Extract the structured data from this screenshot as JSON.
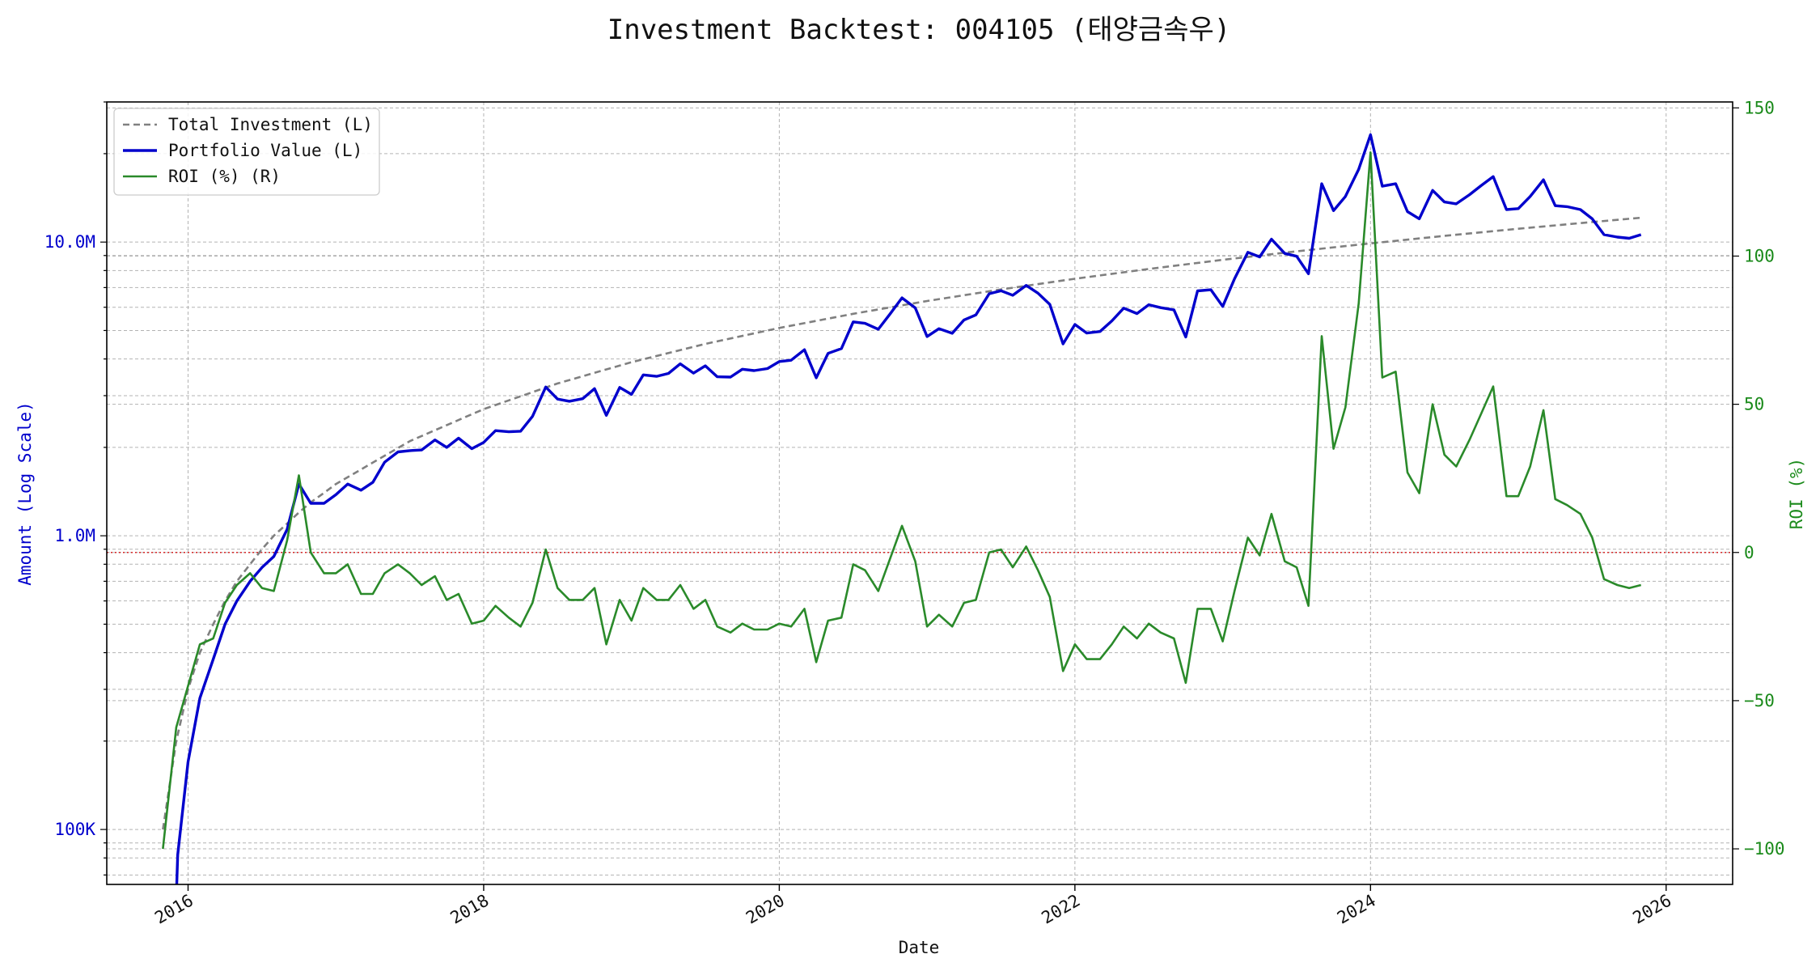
{
  "chart_data": {
    "type": "line",
    "title": "Investment Backtest: 004105 (태양금속우)",
    "xlabel": "Date",
    "ylabel_left": "Amount (Log Scale)",
    "ylabel_right": "ROI (%)",
    "left_scale": "log",
    "xlim": [
      2015.45,
      2026.45
    ],
    "ylim_left": [
      65000,
      30000000
    ],
    "ylim_right": [
      -112,
      152
    ],
    "x_ticks": [
      2016,
      2018,
      2020,
      2022,
      2024,
      2026
    ],
    "x_tick_labels": [
      "2016",
      "2018",
      "2020",
      "2022",
      "2024",
      "2026"
    ],
    "y_left_ticks": [
      100000,
      1000000,
      10000000
    ],
    "y_left_tick_labels": [
      "100K",
      "1.0M",
      "10.0M"
    ],
    "y_right_ticks": [
      -100,
      -50,
      0,
      50,
      100,
      150
    ],
    "y_right_tick_labels": [
      "−100",
      "−50",
      "0",
      "50",
      "100",
      "150"
    ],
    "grid": true,
    "legend_position": "upper-left",
    "reference_line": {
      "axis": "right",
      "value": 0,
      "color": "#d62728"
    },
    "colors": {
      "total": "#808080",
      "portfolio": "#0000cc",
      "roi": "#2a8a2a",
      "left_axis": "#0000cc",
      "right_axis": "#1a8a1a"
    },
    "series": [
      {
        "name": "Total Investment (L)",
        "axis": "left",
        "style": "dashed",
        "x": [
          2015.83,
          2015.92,
          2016.0,
          2016.08,
          2016.17,
          2016.25,
          2016.33,
          2016.42,
          2016.5,
          2016.58,
          2016.67,
          2016.75,
          2016.83,
          2016.92,
          2017.0,
          2017.5,
          2018.0,
          2018.5,
          2019.0,
          2019.5,
          2020.0,
          2020.5,
          2021.0,
          2021.5,
          2022.0,
          2022.5,
          2023.0,
          2023.5,
          2024.0,
          2024.5,
          2025.0,
          2025.5,
          2025.83
        ],
        "y": [
          100000,
          200000,
          300000,
          400000,
          500000,
          600000,
          700000,
          800000,
          900000,
          1000000,
          1100000,
          1200000,
          1300000,
          1400000,
          1500000,
          2100000,
          2700000,
          3300000,
          3900000,
          4500000,
          5100000,
          5700000,
          6300000,
          6900000,
          7500000,
          8100000,
          8700000,
          9300000,
          9900000,
          10500000,
          11100000,
          11700000,
          12100000
        ]
      },
      {
        "name": "Portfolio Value (L)",
        "axis": "left",
        "style": "solid",
        "x": [
          2015.92,
          2015.93,
          2016.0,
          2016.08,
          2016.17,
          2016.25,
          2016.33,
          2016.42,
          2016.5,
          2016.58,
          2016.67,
          2016.75,
          2016.83,
          2016.92,
          2017.0,
          2017.08,
          2017.17,
          2017.25,
          2017.33,
          2017.42,
          2017.5,
          2017.58,
          2017.67,
          2017.75,
          2017.83,
          2017.92,
          2018.0,
          2018.08,
          2018.17,
          2018.25,
          2018.33,
          2018.42,
          2018.5,
          2018.58,
          2018.67,
          2018.75,
          2018.83,
          2018.92,
          2019.0,
          2019.08,
          2019.17,
          2019.25,
          2019.33,
          2019.42,
          2019.5,
          2019.58,
          2019.67,
          2019.75,
          2019.83,
          2019.92,
          2020.0,
          2020.08,
          2020.17,
          2020.25,
          2020.33,
          2020.42,
          2020.5,
          2020.58,
          2020.67,
          2020.75,
          2020.83,
          2020.92,
          2021.0,
          2021.08,
          2021.17,
          2021.25,
          2021.33,
          2021.42,
          2021.5,
          2021.58,
          2021.67,
          2021.75,
          2021.83,
          2021.92,
          2022.0,
          2022.08,
          2022.17,
          2022.25,
          2022.33,
          2022.42,
          2022.5,
          2022.58,
          2022.67,
          2022.75,
          2022.83,
          2022.92,
          2023.0,
          2023.08,
          2023.17,
          2023.25,
          2023.33,
          2023.42,
          2023.5,
          2023.58,
          2023.67,
          2023.75,
          2023.83,
          2023.92,
          2024.0,
          2024.08,
          2024.17,
          2024.25,
          2024.33,
          2024.42,
          2024.5,
          2024.58,
          2024.67,
          2024.75,
          2024.83,
          2024.92,
          2025.0,
          2025.08,
          2025.17,
          2025.25,
          2025.33,
          2025.42,
          2025.5,
          2025.58,
          2025.67,
          2025.75,
          2025.83
        ],
        "y": [
          58000,
          82000,
          170000,
          280000,
          380000,
          500000,
          600000,
          700000,
          780000,
          850000,
          1050000,
          1500000,
          1290000,
          1290000,
          1380000,
          1500000,
          1430000,
          1520000,
          1780000,
          1930000,
          1950000,
          1960000,
          2120000,
          2000000,
          2150000,
          1980000,
          2080000,
          2280000,
          2260000,
          2270000,
          2550000,
          3210000,
          2920000,
          2870000,
          2930000,
          3170000,
          2570000,
          3200000,
          3030000,
          3530000,
          3490000,
          3570000,
          3850000,
          3580000,
          3790000,
          3480000,
          3470000,
          3690000,
          3650000,
          3710000,
          3920000,
          3960000,
          4300000,
          3450000,
          4180000,
          4340000,
          5350000,
          5290000,
          5050000,
          5700000,
          6460000,
          5970000,
          4770000,
          5070000,
          4890000,
          5430000,
          5650000,
          6670000,
          6830000,
          6590000,
          7120000,
          6700000,
          6140000,
          4500000,
          5240000,
          4900000,
          4960000,
          5390000,
          5960000,
          5710000,
          6120000,
          5980000,
          5880000,
          4750000,
          6820000,
          6880000,
          6040000,
          7500000,
          9230000,
          8900000,
          10230000,
          9150000,
          8950000,
          7800000,
          15800000,
          12800000,
          14300000,
          17700000,
          23200000,
          15500000,
          15800000,
          12700000,
          12000000,
          15000000,
          13700000,
          13500000,
          14500000,
          15600000,
          16700000,
          12900000,
          13000000,
          14300000,
          16300000,
          13300000,
          13200000,
          12900000,
          12000000,
          10600000,
          10400000,
          10300000,
          10600000
        ]
      },
      {
        "name": "ROI (%) (R)",
        "axis": "right",
        "style": "solid",
        "x": [
          2015.83,
          2015.92,
          2016.0,
          2016.08,
          2016.17,
          2016.25,
          2016.33,
          2016.42,
          2016.5,
          2016.58,
          2016.67,
          2016.75,
          2016.83,
          2016.92,
          2017.0,
          2017.08,
          2017.17,
          2017.25,
          2017.33,
          2017.42,
          2017.5,
          2017.58,
          2017.67,
          2017.75,
          2017.83,
          2017.92,
          2018.0,
          2018.08,
          2018.17,
          2018.25,
          2018.33,
          2018.42,
          2018.5,
          2018.58,
          2018.67,
          2018.75,
          2018.83,
          2018.92,
          2019.0,
          2019.08,
          2019.17,
          2019.25,
          2019.33,
          2019.42,
          2019.5,
          2019.58,
          2019.67,
          2019.75,
          2019.83,
          2019.92,
          2020.0,
          2020.08,
          2020.17,
          2020.25,
          2020.33,
          2020.42,
          2020.5,
          2020.58,
          2020.67,
          2020.75,
          2020.83,
          2020.92,
          2021.0,
          2021.08,
          2021.17,
          2021.25,
          2021.33,
          2021.42,
          2021.5,
          2021.58,
          2021.67,
          2021.75,
          2021.83,
          2021.92,
          2022.0,
          2022.08,
          2022.17,
          2022.25,
          2022.33,
          2022.42,
          2022.5,
          2022.58,
          2022.67,
          2022.75,
          2022.83,
          2022.92,
          2023.0,
          2023.08,
          2023.17,
          2023.25,
          2023.33,
          2023.42,
          2023.5,
          2023.58,
          2023.67,
          2023.75,
          2023.83,
          2023.92,
          2024.0,
          2024.08,
          2024.17,
          2024.25,
          2024.33,
          2024.42,
          2024.5,
          2024.58,
          2024.67,
          2024.75,
          2024.83,
          2024.92,
          2025.0,
          2025.08,
          2025.17,
          2025.25,
          2025.33,
          2025.42,
          2025.5,
          2025.58,
          2025.67,
          2025.75,
          2025.83
        ],
        "y": [
          -100,
          -59,
          -45,
          -31,
          -29,
          -17,
          -11,
          -7,
          -12,
          -13,
          4,
          26,
          0,
          -7,
          -7,
          -4,
          -14,
          -14,
          -7,
          -4,
          -7,
          -11,
          -8,
          -16,
          -14,
          -24,
          -23,
          -18,
          -22,
          -25,
          -17,
          1,
          -12,
          -16,
          -16,
          -12,
          -31,
          -16,
          -23,
          -12,
          -16,
          -16,
          -11,
          -19,
          -16,
          -25,
          -27,
          -24,
          -26,
          -26,
          -24,
          -25,
          -19,
          -37,
          -23,
          -22,
          -4,
          -6,
          -13,
          -2,
          9,
          -3,
          -25,
          -21,
          -25,
          -17,
          -16,
          0,
          1,
          -5,
          2,
          -6,
          -15,
          -40,
          -31,
          -36,
          -36,
          -31,
          -25,
          -29,
          -24,
          -27,
          -29,
          -44,
          -19,
          -19,
          -30,
          -13,
          5,
          -1,
          13,
          -3,
          -5,
          -18,
          73,
          35,
          49,
          84,
          135,
          59,
          61,
          27,
          20,
          50,
          33,
          29,
          38,
          47,
          56,
          19,
          19,
          29,
          48,
          18,
          16,
          13,
          5,
          -9,
          -11,
          -12,
          -11
        ]
      }
    ]
  }
}
